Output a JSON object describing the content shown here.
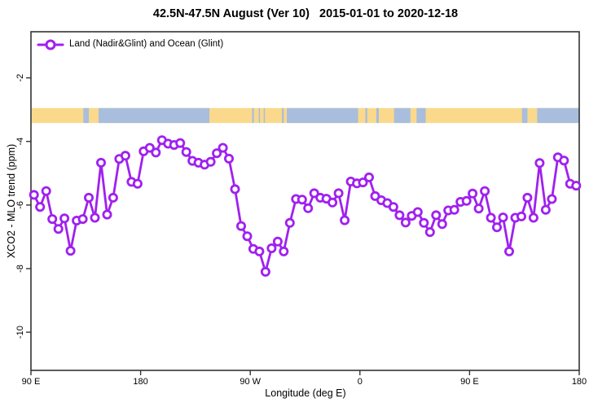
{
  "title": "42.5N-47.5N August (Ver 10)   2015-01-01 to 2020-12-18",
  "legend": {
    "label": "Land (Nadir&Glint) and Ocean (Glint)",
    "position": "top-left"
  },
  "axes": {
    "xlabel": "Longitude (deg E)",
    "ylabel": "XCO2 - MLO trend (ppm)"
  },
  "colors": {
    "series": "#A020F0",
    "marker_fill": "#ffffff",
    "land_strip": "#FAD98C",
    "ocean_strip": "#A8BEDC",
    "frame": "#333333",
    "text": "#000000"
  },
  "chart_data": {
    "type": "line",
    "title": "42.5N-47.5N August (Ver 10)   2015-01-01 to 2020-12-18",
    "xlabel": "Longitude (deg E)",
    "ylabel": "XCO2 - MLO trend (ppm)",
    "legend_entries": [
      "Land (Nadir&Glint) and Ocean (Glint)"
    ],
    "grid": false,
    "xlim": [
      -270,
      180
    ],
    "ylim": [
      -11.2,
      -0.55
    ],
    "x_ticks": [
      {
        "value": -270,
        "label": "90 E"
      },
      {
        "value": -180,
        "label": "180"
      },
      {
        "value": -90,
        "label": "90 W"
      },
      {
        "value": 0,
        "label": "0"
      },
      {
        "value": 90,
        "label": "90 E"
      },
      {
        "value": 180,
        "label": "180"
      }
    ],
    "y_ticks": [
      {
        "value": -2,
        "label": "-2"
      },
      {
        "value": -4,
        "label": "-4"
      },
      {
        "value": -6,
        "label": "-6"
      },
      {
        "value": -8,
        "label": "-8"
      },
      {
        "value": -10,
        "label": "-10"
      }
    ],
    "x": [
      -267.5,
      -262.5,
      -257.5,
      -252.5,
      -247.5,
      -242.5,
      -237.5,
      -232.5,
      -227.5,
      -222.5,
      -217.5,
      -212.5,
      -207.5,
      -202.5,
      -197.5,
      -192.5,
      -187.5,
      -182.5,
      -177.5,
      -172.5,
      -167.5,
      -162.5,
      -157.5,
      -152.5,
      -147.5,
      -142.5,
      -137.5,
      -132.5,
      -127.5,
      -122.5,
      -117.5,
      -112.5,
      -107.5,
      -102.5,
      -97.5,
      -92.5,
      -87.5,
      -82.5,
      -77.5,
      -72.5,
      -67.5,
      -62.5,
      -57.5,
      -52.5,
      -47.5,
      -42.5,
      -37.5,
      -32.5,
      -27.5,
      -22.5,
      -17.5,
      -12.5,
      -7.5,
      -2.5,
      2.5,
      7.5,
      12.5,
      17.5,
      22.5,
      27.5,
      32.5,
      37.5,
      42.5,
      47.5,
      52.5,
      57.5,
      62.5,
      67.5,
      72.5,
      77.5,
      82.5,
      87.5,
      92.5,
      97.5,
      102.5,
      107.5,
      112.5,
      117.5,
      122.5,
      127.5,
      132.5,
      137.5,
      142.5,
      147.5,
      152.5,
      157.5,
      162.5,
      167.5,
      172.5,
      177.5
    ],
    "values": [
      -5.68,
      -6.06,
      -5.56,
      -6.44,
      -6.75,
      -6.42,
      -7.44,
      -6.49,
      -6.44,
      -5.77,
      -6.4,
      -4.67,
      -6.3,
      -5.77,
      -4.55,
      -4.45,
      -5.27,
      -5.33,
      -4.31,
      -4.2,
      -4.35,
      -3.96,
      -4.07,
      -4.11,
      -4.05,
      -4.33,
      -4.61,
      -4.67,
      -4.73,
      -4.64,
      -4.37,
      -4.2,
      -4.54,
      -5.5,
      -6.66,
      -6.98,
      -7.38,
      -7.46,
      -8.1,
      -7.36,
      -7.15,
      -7.46,
      -6.56,
      -5.81,
      -5.83,
      -6.1,
      -5.63,
      -5.77,
      -5.8,
      -5.92,
      -5.63,
      -6.48,
      -5.26,
      -5.32,
      -5.29,
      -5.13,
      -5.72,
      -5.85,
      -5.94,
      -6.06,
      -6.32,
      -6.55,
      -6.34,
      -6.22,
      -6.56,
      -6.85,
      -6.32,
      -6.6,
      -6.17,
      -6.15,
      -5.9,
      -5.87,
      -5.64,
      -6.11,
      -5.56,
      -6.4,
      -6.7,
      -6.39,
      -7.46,
      -6.4,
      -6.36,
      -5.77,
      -6.4,
      -4.68,
      -6.15,
      -5.81,
      -4.5,
      -4.6,
      -5.33,
      -5.39
    ],
    "map_strip": {
      "description": "land/ocean mask band for latitude zone 42.5N-47.5N",
      "y_top": -2.95,
      "y_bottom": -3.42,
      "default": "land",
      "ocean_segments": [
        [
          -227.0,
          -222.5
        ],
        [
          -214.5,
          -123.5
        ],
        [
          -88.5,
          -87.0
        ],
        [
          -83.0,
          -82.0
        ],
        [
          -79.0,
          -78.0
        ],
        [
          -64.0,
          -62.5
        ],
        [
          -60.0,
          -1.5
        ],
        [
          4.5,
          6.0
        ],
        [
          13.5,
          15.5
        ],
        [
          28.0,
          41.5
        ],
        [
          46.5,
          54.0
        ],
        [
          133.0,
          137.5
        ],
        [
          145.5,
          180.0
        ]
      ]
    }
  }
}
